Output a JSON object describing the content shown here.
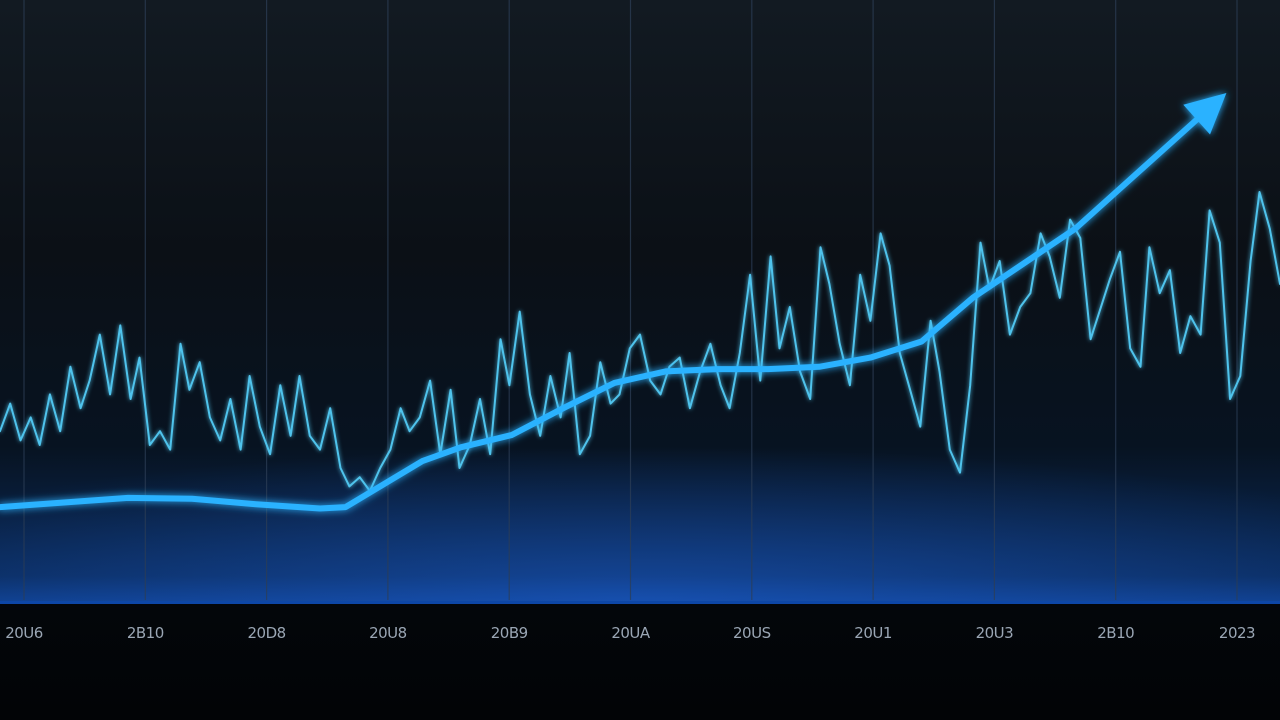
{
  "chart_data": {
    "type": "line",
    "x_tick_labels": [
      "20U6",
      "2B10",
      "20D8",
      "20U8",
      "20B9",
      "20UA",
      "20US",
      "20U1",
      "20U3",
      "2B10",
      "2023"
    ],
    "x_range": [
      0,
      100
    ],
    "y_range": [
      0,
      100
    ],
    "grid": {
      "vertical": true,
      "horizontal": false
    },
    "legend": "none",
    "colors": {
      "trend": "#2bb2ff",
      "volatile": "#4fc3ec",
      "grid": "#2c3e55",
      "axis_band": "#0e3c86"
    },
    "series": [
      {
        "style": "volatile-thin",
        "x": [
          0,
          0.8,
          1.6,
          2.4,
          3.1,
          3.9,
          4.7,
          5.5,
          6.3,
          7.0,
          7.8,
          8.6,
          9.4,
          10.2,
          10.9,
          11.7,
          12.5,
          13.3,
          14.1,
          14.8,
          15.6,
          16.4,
          17.2,
          18.0,
          18.8,
          19.5,
          20.3,
          21.1,
          21.9,
          22.7,
          23.4,
          24.2,
          25.0,
          25.8,
          26.6,
          27.3,
          28.1,
          28.9,
          29.7,
          30.5,
          31.3,
          32.0,
          32.8,
          33.6,
          34.4,
          35.2,
          35.9,
          36.7,
          37.5,
          38.3,
          39.1,
          39.8,
          40.6,
          41.4,
          42.2,
          43.0,
          43.8,
          44.5,
          45.3,
          46.1,
          46.9,
          47.7,
          48.4,
          49.2,
          50.0,
          50.8,
          51.6,
          52.3,
          53.1,
          53.9,
          54.7,
          55.5,
          56.3,
          57.0,
          57.8,
          58.6,
          59.4,
          60.2,
          60.9,
          61.7,
          62.5,
          63.3,
          64.1,
          64.8,
          65.6,
          66.4,
          67.2,
          68.0,
          68.8,
          69.5,
          70.3,
          71.1,
          71.9,
          72.7,
          73.4,
          74.2,
          75.0,
          75.8,
          76.6,
          77.3,
          78.1,
          78.9,
          79.7,
          80.5,
          81.3,
          82.0,
          82.8,
          83.6,
          84.4,
          85.2,
          85.9,
          86.7,
          87.5,
          88.3,
          89.1,
          89.8,
          90.6,
          91.4,
          92.2,
          93.0,
          93.8,
          94.5,
          95.3,
          96.1,
          96.9,
          97.7,
          98.4,
          99.2,
          100
        ],
        "y": [
          28,
          34,
          26,
          31,
          25,
          36,
          28,
          42,
          33,
          39,
          49,
          36,
          51,
          35,
          44,
          25,
          28,
          24,
          47,
          37,
          43,
          31,
          26,
          35,
          24,
          40,
          29,
          23,
          38,
          27,
          40,
          27,
          24,
          33,
          20,
          16,
          18,
          15,
          20,
          24,
          33,
          28,
          31,
          39,
          23,
          37,
          20,
          25,
          35,
          23,
          48,
          38,
          54,
          36,
          27,
          40,
          31,
          45,
          23,
          27,
          43,
          34,
          36,
          46,
          49,
          39,
          36,
          42,
          44,
          33,
          41,
          47,
          38,
          33,
          45,
          62,
          39,
          66,
          46,
          55,
          41,
          35,
          68,
          60,
          47,
          38,
          62,
          52,
          71,
          64,
          45,
          37,
          29,
          52,
          41,
          24,
          19,
          38,
          69,
          59,
          65,
          49,
          55,
          58,
          71,
          66,
          57,
          74,
          70,
          48,
          54,
          61,
          67,
          46,
          42,
          68,
          58,
          63,
          45,
          53,
          49,
          76,
          69,
          35,
          40,
          65,
          80,
          72,
          60
        ]
      },
      {
        "style": "trend-thick",
        "x": [
          0,
          5,
          10,
          15,
          20,
          25,
          27,
          30,
          33,
          36,
          40,
          44,
          48,
          52,
          56,
          60,
          64,
          68,
          72,
          76,
          80,
          84,
          88,
          92,
          95
        ],
        "y": [
          11.5,
          12.5,
          13.5,
          13.3,
          12.1,
          11.2,
          11.5,
          16.5,
          21.5,
          24.5,
          27.2,
          33,
          38.5,
          41,
          41.5,
          41.5,
          42,
          44,
          47.5,
          57,
          64.5,
          72,
          82,
          92,
          99.5
        ]
      }
    ]
  }
}
